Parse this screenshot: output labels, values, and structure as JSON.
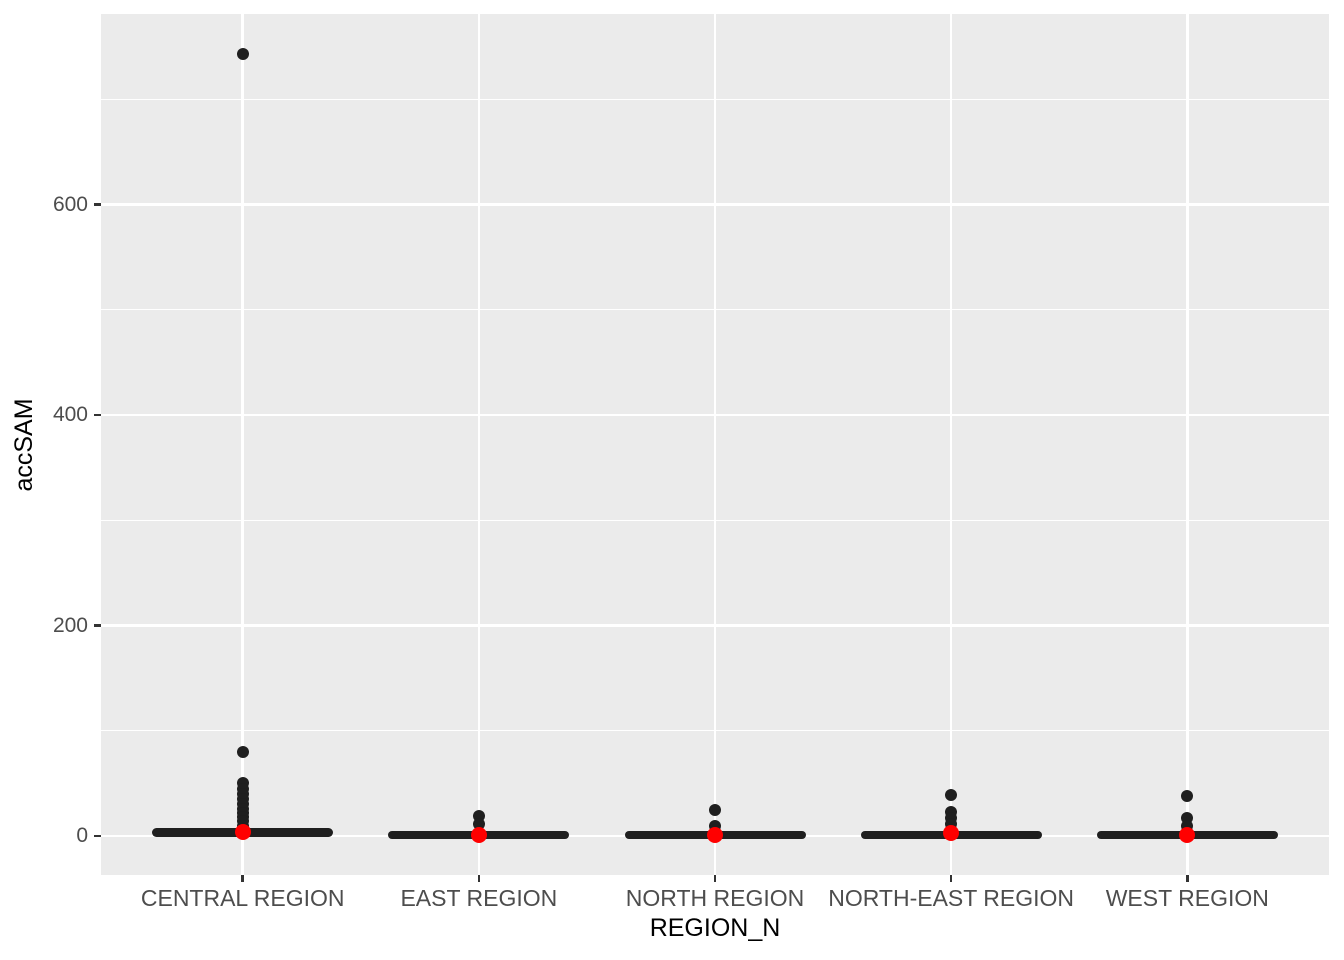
{
  "chart_data": {
    "type": "scatter",
    "subtype": "jittered-points-with-red-mean-dot (ggplot2 style)",
    "title": "",
    "xlabel": "REGION_N",
    "ylabel": "accSAM",
    "categories": [
      "CENTRAL REGION",
      "EAST REGION",
      "NORTH REGION",
      "NORTH-EAST REGION",
      "WEST REGION"
    ],
    "ylim": [
      -37,
      781
    ],
    "yticks": [
      0,
      200,
      400,
      600
    ],
    "ytick_labels": [
      "0",
      "200",
      "400",
      "600"
    ],
    "yticks_minor": [
      100,
      300,
      500,
      700
    ],
    "grid": "horizontal major+minor, vertical major at each category; white on gray panel",
    "legend_position": "none",
    "series": [
      {
        "category": "CENTRAL REGION",
        "dense_band": {
          "min": -0.5,
          "max": 8
        },
        "mean": 4,
        "outliers": [
          743,
          80,
          50,
          45,
          40,
          35,
          30,
          26,
          22,
          18,
          14,
          10
        ]
      },
      {
        "category": "EAST REGION",
        "dense_band": {
          "min": -2.5,
          "max": 4.5
        },
        "mean": 1,
        "outliers": [
          19,
          11
        ]
      },
      {
        "category": "NORTH REGION",
        "dense_band": {
          "min": -2.5,
          "max": 4.5
        },
        "mean": 1,
        "outliers": [
          25,
          10
        ]
      },
      {
        "category": "NORTH-EAST REGION",
        "dense_band": {
          "min": -2,
          "max": 5
        },
        "mean": 3,
        "outliers": [
          39,
          23,
          17,
          11
        ]
      },
      {
        "category": "WEST REGION",
        "dense_band": {
          "min": -2.5,
          "max": 4.5
        },
        "mean": 1,
        "outliers": [
          38,
          17,
          10
        ]
      }
    ],
    "colors": {
      "background": "#FFFFFF",
      "panel": "#EBEBEB",
      "grid": "#FFFFFF",
      "points": "#1F1F1F",
      "mean_point": "#FF0000",
      "tick": "#333333",
      "tick_label": "#4D4D4D",
      "axis_title": "#000000"
    }
  }
}
